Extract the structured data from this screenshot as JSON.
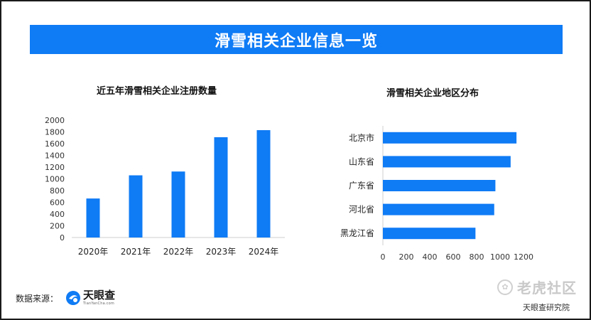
{
  "header": {
    "title": "滑雪相关企业信息一览"
  },
  "footer": {
    "source_label": "数据来源：",
    "logo_text": "天眼查",
    "logo_sub": "TianYanCha.com",
    "watermark": "老虎社区",
    "credit": "天眼查研究院"
  },
  "colors": {
    "accent": "#0f7bf5",
    "bar": "#0f7bf5"
  },
  "chart_data": [
    {
      "type": "bar",
      "title": "近五年滑雪相关企业注册数量",
      "categories": [
        "2020年",
        "2021年",
        "2022年",
        "2023年",
        "2024年"
      ],
      "values": [
        665,
        1060,
        1125,
        1710,
        1830
      ],
      "ylim": [
        0,
        2000
      ],
      "yticks": [
        0,
        200,
        400,
        600,
        800,
        1000,
        1200,
        1400,
        1600,
        1800,
        2000
      ],
      "grid": false,
      "legend": "none"
    },
    {
      "type": "bar",
      "orientation": "horizontal",
      "title": "滑雪相关企业地区分布",
      "categories": [
        "北京市",
        "山东省",
        "广东省",
        "河北省",
        "黑龙江省"
      ],
      "values": [
        1140,
        1090,
        960,
        950,
        790
      ],
      "xlim": [
        0,
        1200
      ],
      "xticks": [
        0,
        200,
        400,
        600,
        800,
        1000,
        1200
      ],
      "grid": false,
      "legend": "none"
    }
  ]
}
